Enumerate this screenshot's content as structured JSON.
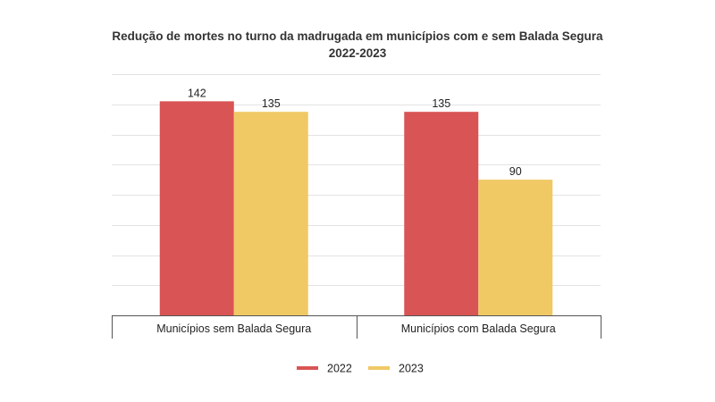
{
  "chart_data": {
    "type": "bar",
    "title": "Redução de mortes no turno da madrugada em municípios com e sem Balada Segura",
    "subtitle": "2022-2023",
    "categories": [
      "Municípios sem Balada Segura",
      "Municípios com Balada Segura"
    ],
    "series": [
      {
        "name": "2022",
        "values": [
          142,
          135
        ],
        "color": "#d95454"
      },
      {
        "name": "2023",
        "values": [
          135,
          90
        ],
        "color": "#f0c965"
      }
    ],
    "ylim": [
      0,
      160
    ],
    "grid": true,
    "legend": "bottom-center",
    "data_labels": true
  }
}
